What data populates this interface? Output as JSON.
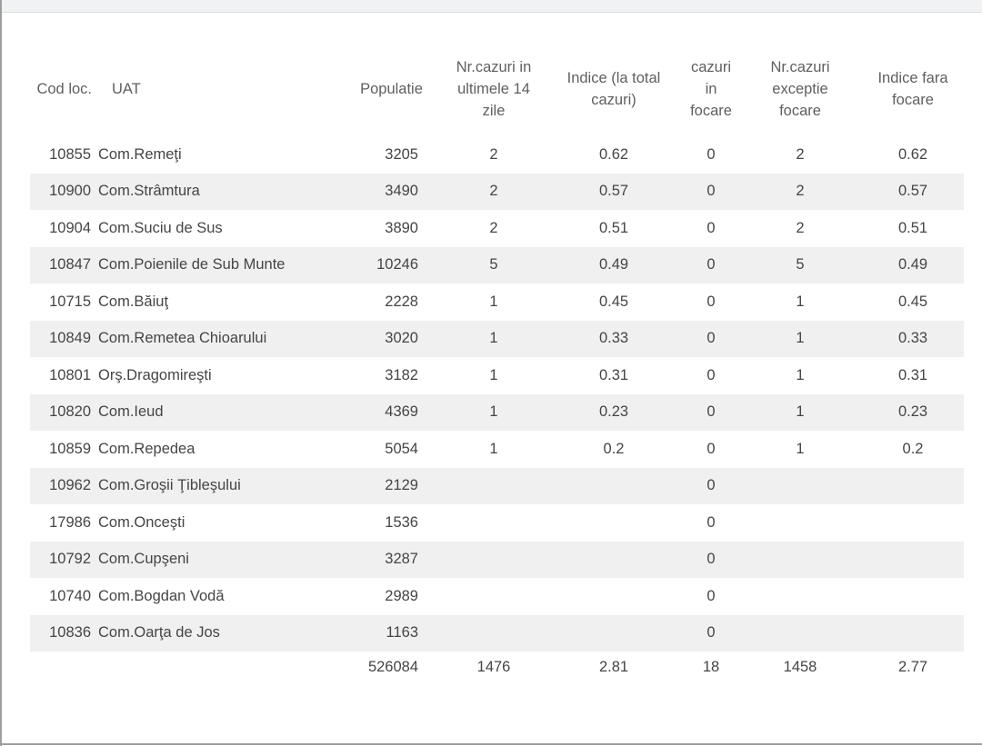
{
  "page": {
    "background": "#ffffff",
    "top_strip_color": "#f1f2f3",
    "edge_line_color": "#9e9e9e",
    "row_shade_color": "#f0f0f0"
  },
  "table": {
    "headers": {
      "code": "Cod loc.",
      "uat": "UAT",
      "populatie": "Populatie",
      "cazuri_14_zile": "Nr.cazuri in ultimele 14 zile",
      "indice_total": "Indice (la total cazuri)",
      "cazuri_focare": "cazuri in focare",
      "cazuri_exceptie": "Nr.cazuri exceptie focare",
      "indice_fara_focare": "Indice fara focare"
    },
    "rows": [
      {
        "code": "10855",
        "uat": "Com.Remeţi",
        "populatie": "3205",
        "cazuri_14_zile": "2",
        "indice_total": "0.62",
        "cazuri_focare": "0",
        "cazuri_exceptie": "2",
        "indice_fara_focare": "0.62"
      },
      {
        "code": "10900",
        "uat": "Com.Strâmtura",
        "populatie": "3490",
        "cazuri_14_zile": "2",
        "indice_total": "0.57",
        "cazuri_focare": "0",
        "cazuri_exceptie": "2",
        "indice_fara_focare": "0.57"
      },
      {
        "code": "10904",
        "uat": "Com.Suciu de Sus",
        "populatie": "3890",
        "cazuri_14_zile": "2",
        "indice_total": "0.51",
        "cazuri_focare": "0",
        "cazuri_exceptie": "2",
        "indice_fara_focare": "0.51"
      },
      {
        "code": "10847",
        "uat": "Com.Poienile de Sub Munte",
        "populatie": "10246",
        "cazuri_14_zile": "5",
        "indice_total": "0.49",
        "cazuri_focare": "0",
        "cazuri_exceptie": "5",
        "indice_fara_focare": "0.49"
      },
      {
        "code": "10715",
        "uat": "Com.Băiuţ",
        "populatie": "2228",
        "cazuri_14_zile": "1",
        "indice_total": "0.45",
        "cazuri_focare": "0",
        "cazuri_exceptie": "1",
        "indice_fara_focare": "0.45"
      },
      {
        "code": "10849",
        "uat": "Com.Remetea Chioarului",
        "populatie": "3020",
        "cazuri_14_zile": "1",
        "indice_total": "0.33",
        "cazuri_focare": "0",
        "cazuri_exceptie": "1",
        "indice_fara_focare": "0.33"
      },
      {
        "code": "10801",
        "uat": "Orş.Dragomireşti",
        "populatie": "3182",
        "cazuri_14_zile": "1",
        "indice_total": "0.31",
        "cazuri_focare": "0",
        "cazuri_exceptie": "1",
        "indice_fara_focare": "0.31"
      },
      {
        "code": "10820",
        "uat": "Com.Ieud",
        "populatie": "4369",
        "cazuri_14_zile": "1",
        "indice_total": "0.23",
        "cazuri_focare": "0",
        "cazuri_exceptie": "1",
        "indice_fara_focare": "0.23"
      },
      {
        "code": "10859",
        "uat": "Com.Repedea",
        "populatie": "5054",
        "cazuri_14_zile": "1",
        "indice_total": "0.2",
        "cazuri_focare": "0",
        "cazuri_exceptie": "1",
        "indice_fara_focare": "0.2"
      },
      {
        "code": "10962",
        "uat": "Com.Groşii Ţibleşului",
        "populatie": "2129",
        "cazuri_14_zile": "",
        "indice_total": "",
        "cazuri_focare": "0",
        "cazuri_exceptie": "",
        "indice_fara_focare": ""
      },
      {
        "code": "17986",
        "uat": "Com.Onceşti",
        "populatie": "1536",
        "cazuri_14_zile": "",
        "indice_total": "",
        "cazuri_focare": "0",
        "cazuri_exceptie": "",
        "indice_fara_focare": ""
      },
      {
        "code": "10792",
        "uat": "Com.Cupşeni",
        "populatie": "3287",
        "cazuri_14_zile": "",
        "indice_total": "",
        "cazuri_focare": "0",
        "cazuri_exceptie": "",
        "indice_fara_focare": ""
      },
      {
        "code": "10740",
        "uat": "Com.Bogdan Vodă",
        "populatie": "2989",
        "cazuri_14_zile": "",
        "indice_total": "",
        "cazuri_focare": "0",
        "cazuri_exceptie": "",
        "indice_fara_focare": ""
      },
      {
        "code": "10836",
        "uat": "Com.Oarţa de Jos",
        "populatie": "1163",
        "cazuri_14_zile": "",
        "indice_total": "",
        "cazuri_focare": "0",
        "cazuri_exceptie": "",
        "indice_fara_focare": ""
      }
    ],
    "total": {
      "populatie": "526084",
      "cazuri_14_zile": "1476",
      "indice_total": "2.81",
      "cazuri_focare": "18",
      "cazuri_exceptie": "1458",
      "indice_fara_focare": "2.77"
    }
  }
}
